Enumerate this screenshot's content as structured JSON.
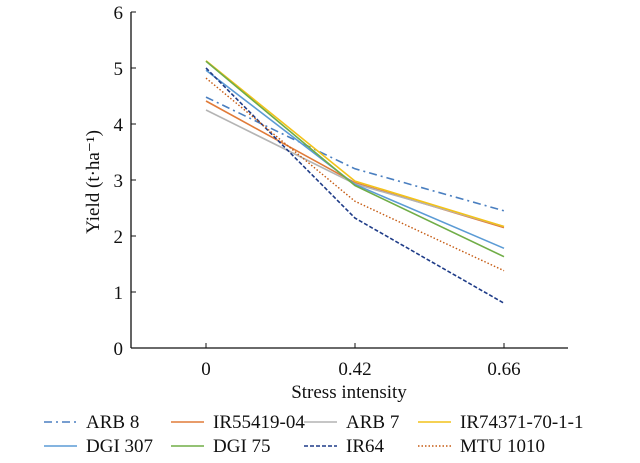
{
  "chart_data": {
    "type": "line",
    "title": "",
    "xlabel": "Stress intensity",
    "ylabel": "Yield (t·ha⁻¹)",
    "x": [
      "0",
      "0.42",
      "0.66"
    ],
    "ylim": [
      0,
      6
    ],
    "yticks": [
      "0",
      "1",
      "2",
      "3",
      "4",
      "5",
      "6"
    ],
    "grid": false,
    "legend_position": "bottom",
    "series": [
      {
        "name": "ARB 8",
        "color": "#4a7fc0",
        "dash": "dashdot",
        "values": [
          4.48,
          3.2,
          2.45
        ]
      },
      {
        "name": "IR55419-04",
        "color": "#e07b39",
        "dash": "solid",
        "values": [
          4.41,
          2.95,
          2.15
        ]
      },
      {
        "name": "ARB 7",
        "color": "#b4b4b4",
        "dash": "solid",
        "values": [
          4.25,
          2.93,
          2.17
        ]
      },
      {
        "name": "IR74371-70-1-1",
        "color": "#f2c21a",
        "dash": "solid",
        "values": [
          5.13,
          2.98,
          2.17
        ]
      },
      {
        "name": "DGI 307",
        "color": "#5b9bd5",
        "dash": "solid",
        "values": [
          4.96,
          2.92,
          1.78
        ]
      },
      {
        "name": "DGI 75",
        "color": "#70ad47",
        "dash": "solid",
        "values": [
          5.12,
          2.9,
          1.63
        ]
      },
      {
        "name": "IR64",
        "color": "#1f3c88",
        "dash": "dashed",
        "values": [
          5.0,
          2.32,
          0.8
        ]
      },
      {
        "name": "MTU 1010",
        "color": "#c55a11",
        "dash": "dotted",
        "values": [
          4.82,
          2.62,
          1.38
        ]
      }
    ]
  }
}
